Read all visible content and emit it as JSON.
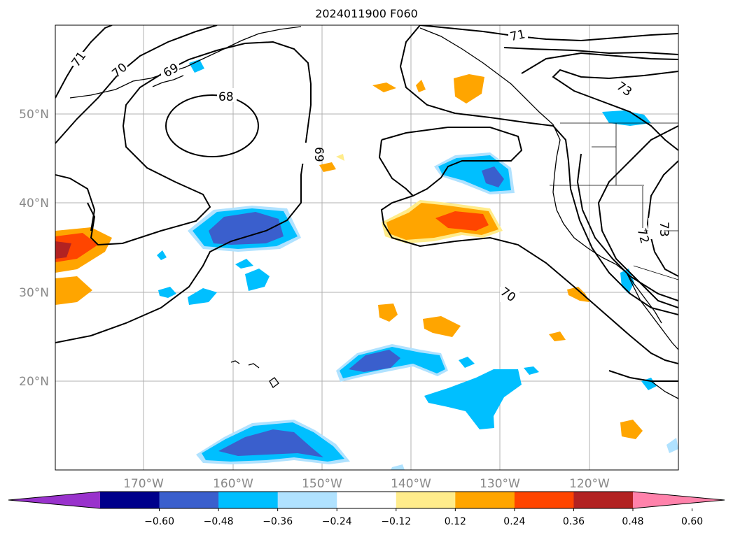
{
  "title": "2024011900 F060",
  "map": {
    "lat_labels": [
      "50°N",
      "40°N",
      "30°N",
      "20°N"
    ],
    "lon_labels": [
      "170°W",
      "160°W",
      "150°W",
      "140°W",
      "130°W",
      "120°W"
    ],
    "contour_labels": [
      "71",
      "70",
      "69",
      "68",
      "69",
      "71",
      "73",
      "70",
      "73",
      "72"
    ],
    "grid": true
  },
  "colorbar": {
    "ticks": [
      "−0.60",
      "−0.48",
      "−0.36",
      "−0.24",
      "−0.12",
      "0.12",
      "0.24",
      "0.36",
      "0.48",
      "0.60"
    ],
    "colors": [
      "#9932cc",
      "#00008b",
      "#3a5fcd",
      "#00bfff",
      "#b0e2ff",
      "#ffffff",
      "#ffec8b",
      "#ffa500",
      "#ff4500",
      "#b22222",
      "#ff82ab"
    ],
    "extend": "both"
  }
}
